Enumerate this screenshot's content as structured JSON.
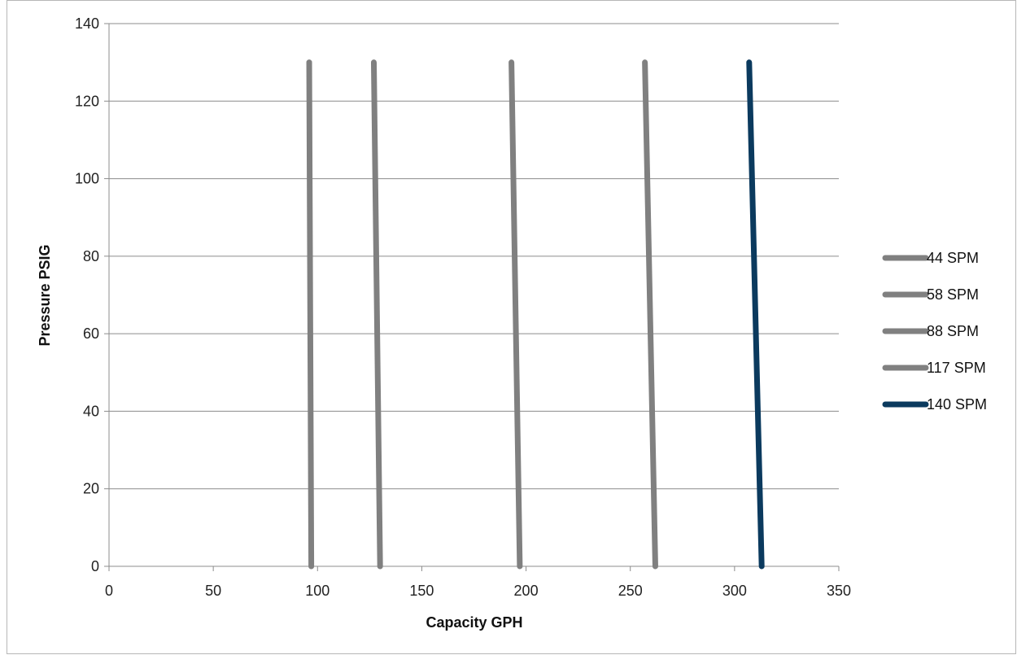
{
  "chart_data": {
    "type": "line",
    "title": "",
    "xlabel": "Capacity GPH",
    "ylabel": "Pressure PSIG",
    "xlim": [
      0,
      350
    ],
    "ylim": [
      0,
      140
    ],
    "x_ticks": [
      0,
      50,
      100,
      150,
      200,
      250,
      300,
      350
    ],
    "y_ticks": [
      0,
      20,
      40,
      60,
      80,
      100,
      120,
      140
    ],
    "grid": "horizontal",
    "legend_position": "right",
    "series": [
      {
        "name": "44 SPM",
        "color": "#808080",
        "points": [
          [
            97,
            0
          ],
          [
            96,
            130
          ]
        ]
      },
      {
        "name": "58 SPM",
        "color": "#808080",
        "points": [
          [
            130,
            0
          ],
          [
            127,
            130
          ]
        ]
      },
      {
        "name": "88 SPM",
        "color": "#808080",
        "points": [
          [
            197,
            0
          ],
          [
            193,
            130
          ]
        ]
      },
      {
        "name": "117 SPM",
        "color": "#808080",
        "points": [
          [
            262,
            0
          ],
          [
            257,
            130
          ]
        ]
      },
      {
        "name": "140 SPM",
        "color": "#0b3a5e",
        "points": [
          [
            313,
            0
          ],
          [
            307,
            130
          ]
        ]
      }
    ]
  }
}
